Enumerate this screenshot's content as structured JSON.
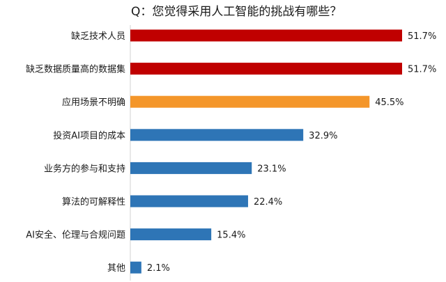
{
  "chart_data": {
    "type": "bar",
    "orientation": "horizontal",
    "title": "Q：您觉得采用人工智能的挑战有哪些？",
    "categories": [
      "缺乏技术人员",
      "缺乏数据质量高的数据集",
      "应用场景不明确",
      "投资AI项目的成本",
      "业务方的参与和支持",
      "算法的可解释性",
      "AI安全、伦理与合规问题",
      "其他"
    ],
    "values": [
      51.7,
      51.7,
      45.5,
      32.9,
      23.1,
      22.4,
      15.4,
      2.1
    ],
    "value_labels": [
      "51.7%",
      "51.7%",
      "45.5%",
      "32.9%",
      "23.1%",
      "22.4%",
      "15.4%",
      "2.1%"
    ],
    "bar_colors": [
      "#c00000",
      "#c00000",
      "#f4962a",
      "#2e75b6",
      "#2e75b6",
      "#2e75b6",
      "#2e75b6",
      "#2e75b6"
    ],
    "xlim": [
      0,
      51.7
    ],
    "grid": false,
    "legend": "none"
  }
}
